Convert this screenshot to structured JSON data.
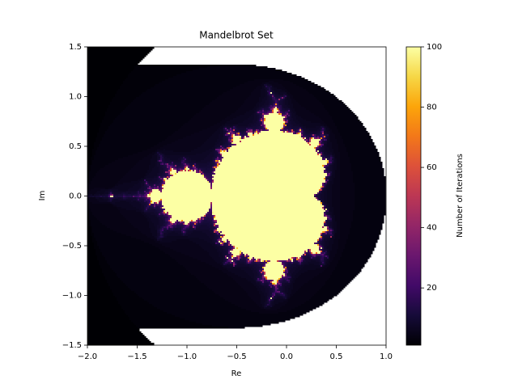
{
  "chart_data": {
    "type": "image",
    "title": "Mandelbrot Set",
    "xlabel": "Re",
    "ylabel": "Im",
    "xlim": [
      -2,
      1
    ],
    "ylim": [
      -1.5,
      1.5
    ],
    "xticks": [
      {
        "value": -2,
        "label": "−2.0"
      },
      {
        "value": -1.5,
        "label": "−1.5"
      },
      {
        "value": -1,
        "label": "−1.0"
      },
      {
        "value": -0.5,
        "label": "−0.5"
      },
      {
        "value": 0,
        "label": "0.0"
      },
      {
        "value": 0.5,
        "label": "0.5"
      },
      {
        "value": 1,
        "label": "1.0"
      }
    ],
    "yticks": [
      {
        "value": -1.5,
        "label": "−1.5"
      },
      {
        "value": -1,
        "label": "−1.0"
      },
      {
        "value": -0.5,
        "label": "−0.5"
      },
      {
        "value": 0,
        "label": "0.0"
      },
      {
        "value": 0.5,
        "label": "0.5"
      },
      {
        "value": 1,
        "label": "1.0"
      },
      {
        "value": 1.5,
        "label": "1.5"
      }
    ],
    "colormap": "inferno",
    "colorbar_label": "Number of Iterations",
    "clim": [
      1,
      100
    ],
    "cticks": [
      20,
      40,
      60,
      80,
      100
    ]
  }
}
